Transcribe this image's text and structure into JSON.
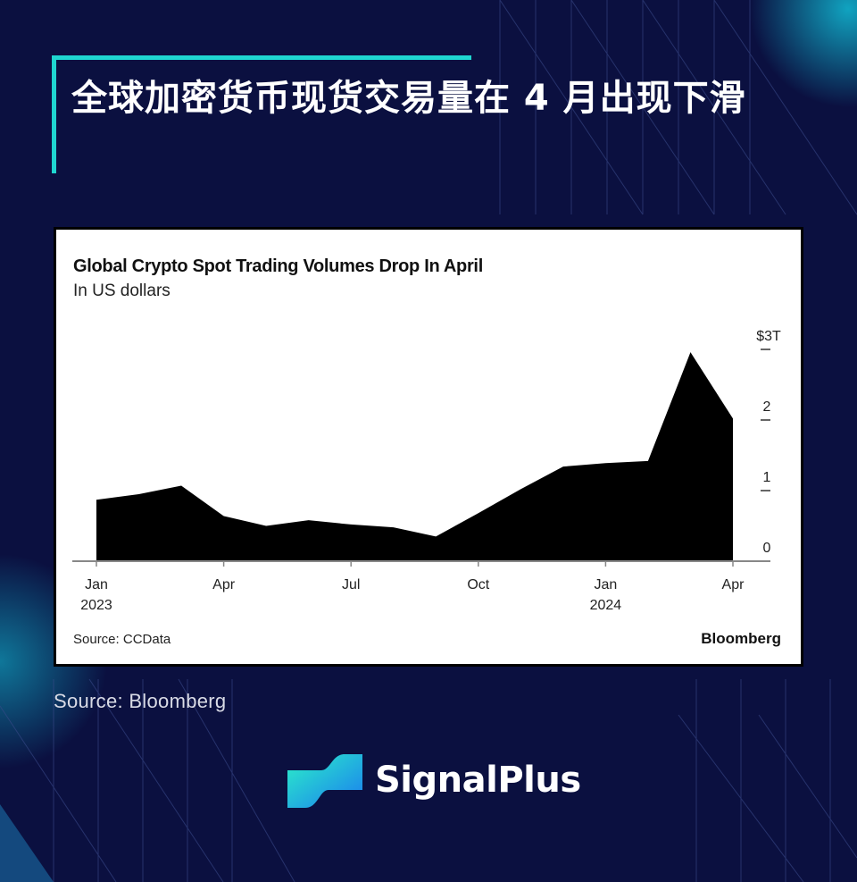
{
  "header": {
    "title": "全球加密货币现货交易量在 4 月出现下滑"
  },
  "footer": {
    "source": "Source: Bloomberg",
    "brand": "SignalPlus"
  },
  "colors": {
    "background": "#0b1040",
    "accent": "#1fd6d0",
    "area_fill": "#000000"
  },
  "chart_data": {
    "type": "area",
    "title": "Global Crypto Spot Trading Volumes Drop In April",
    "subtitle": "In US dollars",
    "source": "Source: CCData",
    "credit": "Bloomberg",
    "x": [
      "2023-01",
      "2023-02",
      "2023-03",
      "2023-04",
      "2023-05",
      "2023-06",
      "2023-07",
      "2023-08",
      "2023-09",
      "2023-10",
      "2023-11",
      "2023-12",
      "2024-01",
      "2024-02",
      "2024-03",
      "2024-04"
    ],
    "values": [
      0.87,
      0.95,
      1.07,
      0.64,
      0.5,
      0.58,
      0.52,
      0.48,
      0.35,
      0.68,
      1.02,
      1.34,
      1.39,
      1.42,
      2.96,
      2.02
    ],
    "unit": "trillion USD",
    "ylim": [
      0,
      3
    ],
    "y_ticks": [
      {
        "value": 3,
        "label": "$3T"
      },
      {
        "value": 2,
        "label": "2"
      },
      {
        "value": 1,
        "label": "1"
      },
      {
        "value": 0,
        "label": "0"
      }
    ],
    "x_ticks": [
      {
        "month": "2023-01",
        "label": "Jan",
        "sublabel": "2023"
      },
      {
        "month": "2023-04",
        "label": "Apr",
        "sublabel": ""
      },
      {
        "month": "2023-07",
        "label": "Jul",
        "sublabel": ""
      },
      {
        "month": "2023-10",
        "label": "Oct",
        "sublabel": ""
      },
      {
        "month": "2024-01",
        "label": "Jan",
        "sublabel": "2024"
      },
      {
        "month": "2024-04",
        "label": "Apr",
        "sublabel": ""
      }
    ],
    "y_axis_position": "right",
    "grid": false,
    "legend": "none"
  }
}
